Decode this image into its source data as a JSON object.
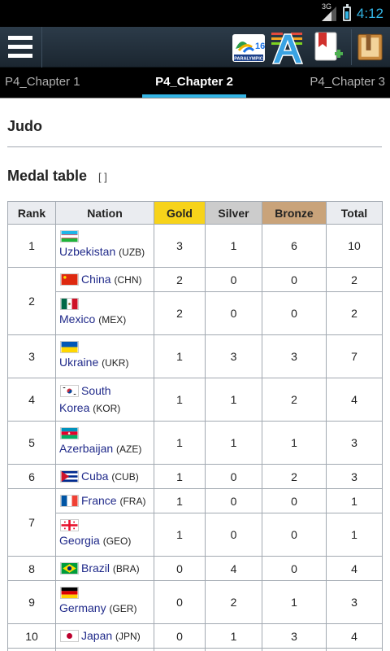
{
  "status_bar": {
    "network": "3G",
    "time": "4:12"
  },
  "action_bar": {
    "icons": [
      "menu-icon",
      "rio-2016-paralympic-logo",
      "font-size-icon",
      "add-bookmark-icon",
      "library-book-icon"
    ],
    "logo_text": "PARALYMPIC"
  },
  "tabs": [
    "P4_Chapter 1",
    "P4_Chapter 2",
    "P4_Chapter 3"
  ],
  "active_tab": "P4_Chapter 2",
  "page": {
    "title": "Judo",
    "section": "Medal table",
    "edit_link": "[ ]"
  },
  "table": {
    "headers": [
      "Rank",
      "Nation",
      "Gold",
      "Silver",
      "Bronze",
      "Total"
    ],
    "header_colors": {
      "gold": "#f7d31a",
      "silver": "#cccccc",
      "bronze": "#c9a37a"
    },
    "rows": [
      {
        "rank": "1",
        "name": "Uzbekistan",
        "code": "(UZB)",
        "gold": "3",
        "silver": "1",
        "bronze": "6",
        "total": "10"
      },
      {
        "rank": "2",
        "name": "China",
        "code": "(CHN)",
        "gold": "2",
        "silver": "0",
        "bronze": "0",
        "total": "2"
      },
      {
        "rank": "",
        "name": "Mexico",
        "code": "(MEX)",
        "gold": "2",
        "silver": "0",
        "bronze": "0",
        "total": "2"
      },
      {
        "rank": "3",
        "name": "Ukraine",
        "code": "(UKR)",
        "gold": "1",
        "silver": "3",
        "bronze": "3",
        "total": "7"
      },
      {
        "rank": "4",
        "name_line1": "South",
        "name_line2": "Korea",
        "code": "(KOR)",
        "gold": "1",
        "silver": "1",
        "bronze": "2",
        "total": "4"
      },
      {
        "rank": "5",
        "name": "Azerbaijan",
        "code": "(AZE)",
        "gold": "1",
        "silver": "1",
        "bronze": "1",
        "total": "3"
      },
      {
        "rank": "6",
        "name": "Cuba",
        "code": "(CUB)",
        "gold": "1",
        "silver": "0",
        "bronze": "2",
        "total": "3"
      },
      {
        "rank": "7",
        "name": "France",
        "code": "(FRA)",
        "gold": "1",
        "silver": "0",
        "bronze": "0",
        "total": "1"
      },
      {
        "rank": "",
        "name": "Georgia",
        "code": "(GEO)",
        "gold": "1",
        "silver": "0",
        "bronze": "0",
        "total": "1"
      },
      {
        "rank": "8",
        "name": "Brazil",
        "code": "(BRA)",
        "gold": "0",
        "silver": "4",
        "bronze": "0",
        "total": "4"
      },
      {
        "rank": "9",
        "name": "Germany",
        "code": "(GER)",
        "gold": "0",
        "silver": "2",
        "bronze": "1",
        "total": "3"
      },
      {
        "rank": "10",
        "name": "Japan",
        "code": "(JPN)",
        "gold": "0",
        "silver": "1",
        "bronze": "3",
        "total": "4"
      }
    ]
  }
}
